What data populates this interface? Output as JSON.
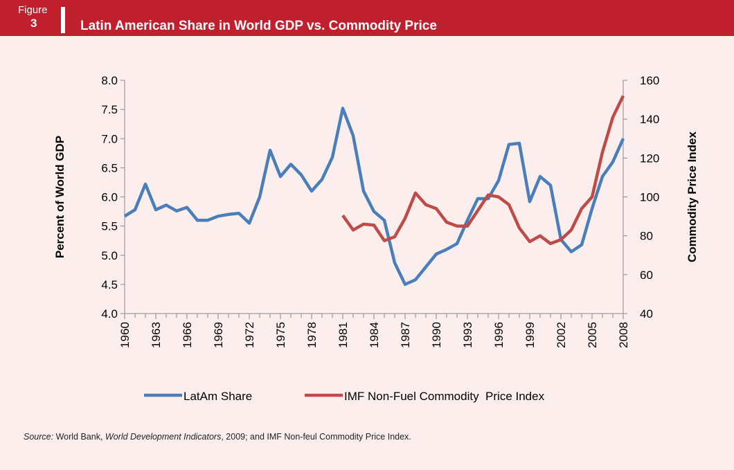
{
  "header": {
    "figure_label": "Figure",
    "figure_number": "3"
  },
  "chart_data": {
    "type": "line",
    "title": "Latin American Share in World GDP vs. Commodity Price",
    "y_label": "Percent of World GDP",
    "y2_label": "Commodity Price  Index",
    "x": [
      1960,
      1961,
      1962,
      1963,
      1964,
      1965,
      1966,
      1967,
      1968,
      1969,
      1970,
      1971,
      1972,
      1973,
      1974,
      1975,
      1976,
      1977,
      1978,
      1979,
      1980,
      1981,
      1982,
      1983,
      1984,
      1985,
      1986,
      1987,
      1988,
      1989,
      1990,
      1991,
      1992,
      1993,
      1994,
      1995,
      1996,
      1997,
      1998,
      1999,
      2000,
      2001,
      2002,
      2003,
      2004,
      2005,
      2006,
      2007,
      2008
    ],
    "xlim": [
      1960,
      2008
    ],
    "xticks": [
      1960,
      1963,
      1966,
      1969,
      1972,
      1975,
      1978,
      1981,
      1984,
      1987,
      1990,
      1993,
      1996,
      1999,
      2002,
      2005,
      2008
    ],
    "ylim": [
      4,
      8
    ],
    "yticks": [
      {
        "value": 4,
        "label": "4.0"
      },
      {
        "value": 4.5,
        "label": "4.5"
      },
      {
        "value": 5,
        "label": "5.0"
      },
      {
        "value": 5.5,
        "label": "5.5"
      },
      {
        "value": 6,
        "label": "6.0"
      },
      {
        "value": 6.5,
        "label": "6.5"
      },
      {
        "value": 7,
        "label": "7.0"
      },
      {
        "value": 7.5,
        "label": "7.5"
      },
      {
        "value": 8,
        "label": "8.0"
      }
    ],
    "y2lim": [
      40,
      160
    ],
    "y2ticks": [
      40,
      60,
      80,
      100,
      120,
      140,
      160
    ],
    "series": [
      {
        "name": "LatAm Share",
        "color": "#4a7ebb",
        "values": [
          5.67,
          5.78,
          6.22,
          5.78,
          5.86,
          5.76,
          5.82,
          5.6,
          5.6,
          5.67,
          5.7,
          5.72,
          5.55,
          6.0,
          6.8,
          6.35,
          6.56,
          6.38,
          6.1,
          6.3,
          6.68,
          7.52,
          7.05,
          6.1,
          5.75,
          5.6,
          4.87,
          4.5,
          4.58,
          4.8,
          5.02,
          5.1,
          5.2,
          5.6,
          5.97,
          5.97,
          6.28,
          6.9,
          6.92,
          5.92,
          6.35,
          6.2,
          5.27,
          5.06,
          5.18,
          5.8,
          6.35,
          6.6,
          7.0
        ]
      },
      {
        "name": "IMF Non-Fuel Commodity  Price Index",
        "color": "#be4b48",
        "axis": "y2",
        "values": [
          null,
          null,
          null,
          null,
          null,
          null,
          null,
          null,
          null,
          null,
          null,
          null,
          null,
          null,
          null,
          null,
          null,
          null,
          null,
          null,
          null,
          90.5,
          83,
          86,
          85.5,
          77.5,
          79.5,
          89,
          102,
          96,
          94,
          87,
          85,
          85,
          93,
          101,
          100,
          96,
          84,
          77,
          80,
          76,
          78,
          83,
          94,
          100,
          123,
          141,
          152
        ]
      }
    ]
  },
  "footer": {
    "source": [
      "Source:",
      " World Bank, ",
      "World Development Indicators",
      ", 2009; and IMF Non-feul Commodity Price Index."
    ]
  }
}
